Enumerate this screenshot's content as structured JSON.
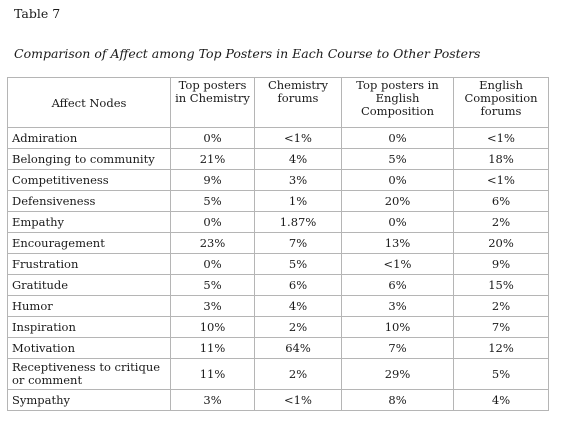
{
  "table_label": "Table 7",
  "caption": "Comparison of Affect among Top Posters in Each Course to Other Posters",
  "columns": [
    "Affect Nodes",
    "Top posters in Chemistry",
    "Chemistry forums",
    "Top posters in English Composition",
    "English Composition forums"
  ],
  "rows": [
    {
      "node": "Admiration",
      "top_chem": "0%",
      "chem_forums": "<1%",
      "top_eng": "0%",
      "eng_forums": "<1%"
    },
    {
      "node": "Belonging to community",
      "top_chem": "21%",
      "chem_forums": "4%",
      "top_eng": "5%",
      "eng_forums": "18%"
    },
    {
      "node": "Competitiveness",
      "top_chem": "9%",
      "chem_forums": "3%",
      "top_eng": "0%",
      "eng_forums": "<1%"
    },
    {
      "node": "Defensiveness",
      "top_chem": "5%",
      "chem_forums": "1%",
      "top_eng": "20%",
      "eng_forums": "6%"
    },
    {
      "node": "Empathy",
      "top_chem": "0%",
      "chem_forums": "1.87%",
      "top_eng": "0%",
      "eng_forums": "2%"
    },
    {
      "node": "Encouragement",
      "top_chem": "23%",
      "chem_forums": "7%",
      "top_eng": "13%",
      "eng_forums": "20%"
    },
    {
      "node": "Frustration",
      "top_chem": "0%",
      "chem_forums": "5%",
      "top_eng": "<1%",
      "eng_forums": "9%"
    },
    {
      "node": "Gratitude",
      "top_chem": "5%",
      "chem_forums": "6%",
      "top_eng": "6%",
      "eng_forums": "15%"
    },
    {
      "node": "Humor",
      "top_chem": "3%",
      "chem_forums": "4%",
      "top_eng": "3%",
      "eng_forums": "2%"
    },
    {
      "node": "Inspiration",
      "top_chem": "10%",
      "chem_forums": "2%",
      "top_eng": "10%",
      "eng_forums": "7%"
    },
    {
      "node": "Motivation",
      "top_chem": "11%",
      "chem_forums": "64%",
      "top_eng": "7%",
      "eng_forums": "12%"
    },
    {
      "node": "Receptiveness to critique or comment",
      "top_chem": "11%",
      "chem_forums": "2%",
      "top_eng": "29%",
      "eng_forums": "5%"
    },
    {
      "node": "Sympathy",
      "top_chem": "3%",
      "chem_forums": "<1%",
      "top_eng": "8%",
      "eng_forums": "4%"
    }
  ]
}
